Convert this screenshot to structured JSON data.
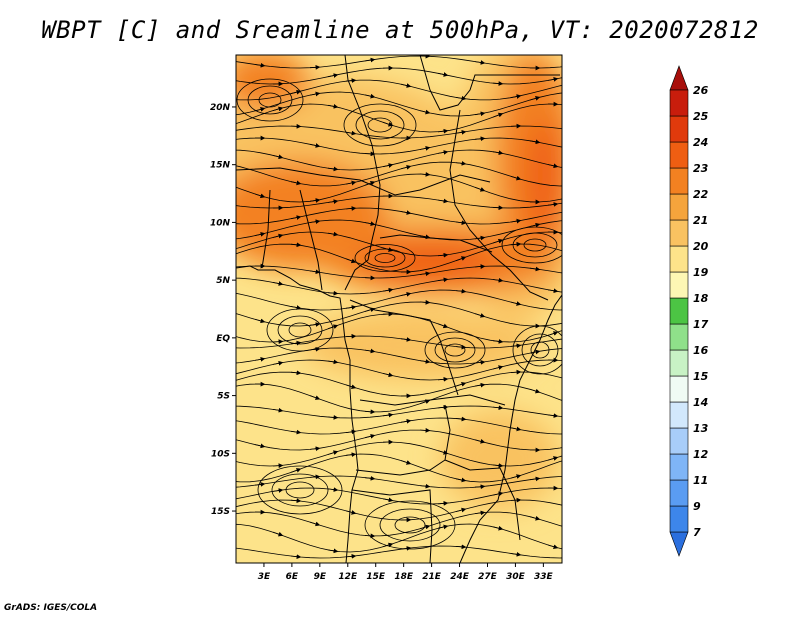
{
  "title": "WBPT [C] and Sreamline at 500hPa, VT: 2020072812",
  "credit": "GrADS: IGES/COLA",
  "map": {
    "lon_range": [
      0,
      35
    ],
    "lat_range": [
      -19.5,
      24.5
    ],
    "lon_labels": [
      {
        "lon": 3,
        "label": "3E"
      },
      {
        "lon": 6,
        "label": "6E"
      },
      {
        "lon": 9,
        "label": "9E"
      },
      {
        "lon": 12,
        "label": "12E"
      },
      {
        "lon": 15,
        "label": "15E"
      },
      {
        "lon": 18,
        "label": "18E"
      },
      {
        "lon": 21,
        "label": "21E"
      },
      {
        "lon": 24,
        "label": "24E"
      },
      {
        "lon": 27,
        "label": "27E"
      },
      {
        "lon": 30,
        "label": "30E"
      },
      {
        "lon": 33,
        "label": "33E"
      }
    ],
    "lat_labels": [
      {
        "lat": 20,
        "label": "20N"
      },
      {
        "lat": 15,
        "label": "15N"
      },
      {
        "lat": 10,
        "label": "10N"
      },
      {
        "lat": 5,
        "label": "5N"
      },
      {
        "lat": 0,
        "label": "EQ"
      },
      {
        "lat": -5,
        "label": "5S"
      },
      {
        "lat": -10,
        "label": "10S"
      },
      {
        "lat": -15,
        "label": "15S"
      }
    ]
  },
  "colorbar": {
    "levels": [
      "7",
      "9",
      "11",
      "12",
      "13",
      "14",
      "15",
      "16",
      "17",
      "18",
      "19",
      "20",
      "21",
      "22",
      "23",
      "24",
      "25",
      "26"
    ],
    "colors": [
      "#2b6fde",
      "#3d86ea",
      "#5a9cf2",
      "#7fb5f7",
      "#a8cdf9",
      "#d2e8fc",
      "#f0fbf4",
      "#c8f2c5",
      "#8fe08a",
      "#4cc444",
      "#fdf7b4",
      "#fde38a",
      "#f9c261",
      "#f5a43c",
      "#f38121",
      "#ef5e12",
      "#e03a0c",
      "#c81d0c",
      "#a80f0b"
    ]
  },
  "colors": {
    "ocean": "#fde38a",
    "field_low": "#fde38a",
    "field_mid": "#f9c261",
    "field_high": "#f38121",
    "field_peak": "#ef5e12"
  }
}
